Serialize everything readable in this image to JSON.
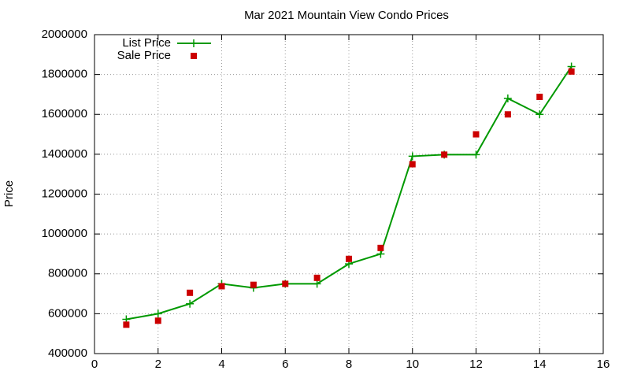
{
  "chart_data": {
    "type": "line",
    "title": "Mar 2021 Mountain View Condo Prices",
    "ylabel": "Price",
    "x": [
      1,
      2,
      3,
      4,
      5,
      6,
      7,
      8,
      9,
      10,
      11,
      12,
      13,
      14,
      15
    ],
    "series": [
      {
        "name": "List Price",
        "color": "#009900",
        "style": "linespoints",
        "values": [
          572000,
          600000,
          650000,
          750000,
          730000,
          750000,
          750000,
          850000,
          900000,
          1390000,
          1398000,
          1398000,
          1680000,
          1600000,
          1840000
        ]
      },
      {
        "name": "Sale Price",
        "color": "#cc0000",
        "style": "points",
        "values": [
          545000,
          565000,
          705000,
          738000,
          745000,
          750000,
          780000,
          875000,
          930000,
          1350000,
          1398000,
          1500000,
          1600000,
          1688000,
          1815000
        ]
      }
    ],
    "xlim": [
      0,
      16
    ],
    "xticks": [
      0,
      2,
      4,
      6,
      8,
      10,
      12,
      14,
      16
    ],
    "ylim": [
      400000,
      2000000
    ],
    "yticks": [
      400000,
      600000,
      800000,
      1000000,
      1200000,
      1400000,
      1600000,
      1800000,
      2000000
    ],
    "grid": true,
    "legend": "top-left"
  }
}
